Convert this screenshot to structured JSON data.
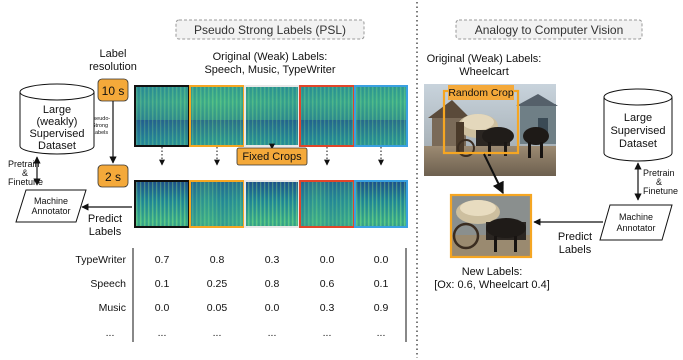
{
  "psl": {
    "title": "Pseudo Strong Labels (PSL)",
    "label_resolution": [
      "Label",
      "resolution"
    ],
    "res_top": "10 s",
    "res_bottom": "2 s",
    "pseudo_strong": [
      "Pseudo-",
      "Strong",
      "Labels"
    ],
    "original_labels": [
      "Original (Weak) Labels:",
      "Speech, Music, TypeWriter"
    ],
    "fixed_crops": "Fixed Crops",
    "dataset": [
      "Large",
      "(weakly)",
      "Supervised",
      "Dataset"
    ],
    "pretrain": [
      "Pretrain",
      "&",
      "Finetune"
    ],
    "annotator": [
      "Machine",
      "Annotator"
    ],
    "predict": [
      "Predict",
      "Labels"
    ],
    "table": {
      "rows": [
        {
          "label": "TypeWriter",
          "values": [
            "0.7",
            "0.8",
            "0.3",
            "0.0",
            "0.0"
          ]
        },
        {
          "label": "Speech",
          "values": [
            "0.1",
            "0.25",
            "0.8",
            "0.6",
            "0.1"
          ]
        },
        {
          "label": "Music",
          "values": [
            "0.0",
            "0.05",
            "0.0",
            "0.3",
            "0.9"
          ]
        },
        {
          "label": "...",
          "values": [
            "...",
            "...",
            "...",
            "...",
            "..."
          ]
        }
      ]
    },
    "crop_colors": [
      "#111111",
      "#f5a623",
      "#e8e8e8",
      "#e0452a",
      "#3aa0e0"
    ]
  },
  "cv": {
    "title": "Analogy to Computer Vision",
    "original_labels": [
      "Original (Weak) Labels:",
      "Wheelcart"
    ],
    "random_crop": "Random Crop",
    "dataset": [
      "Large",
      "Supervised",
      "Dataset"
    ],
    "pretrain": [
      "Pretrain",
      "&",
      "Finetune"
    ],
    "annotator": [
      "Machine",
      "Annotator"
    ],
    "predict": [
      "Predict",
      "Labels"
    ],
    "new_labels": [
      "New Labels:",
      "[Ox: 0.6, Wheelcart 0.4]"
    ]
  },
  "colors": {
    "accent_orange": "#f5a623",
    "box_fill": "#f4a93a"
  }
}
